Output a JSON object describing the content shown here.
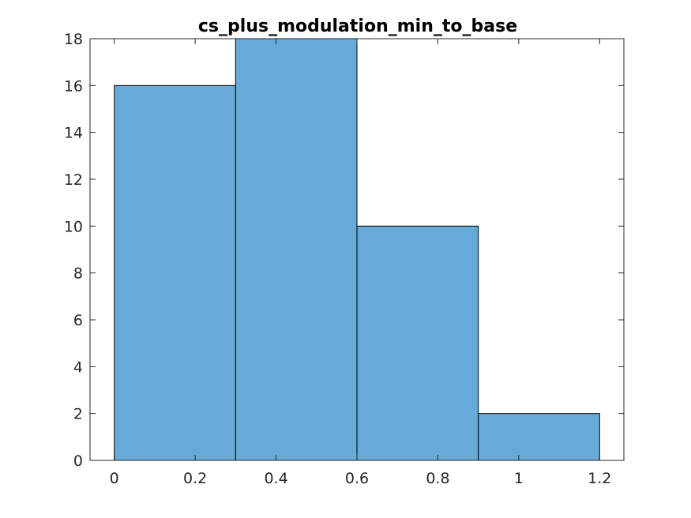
{
  "chart_data": {
    "type": "bar",
    "subtype": "histogram",
    "title": "cs_plus_modulation_min_to_base",
    "xlabel": "",
    "ylabel": "",
    "bin_edges": [
      0,
      0.3,
      0.6,
      0.9,
      1.2
    ],
    "counts": [
      16,
      18,
      10,
      2
    ],
    "xlim": [
      -0.06,
      1.26
    ],
    "ylim": [
      0,
      18
    ],
    "xticks": [
      0,
      0.2,
      0.4,
      0.6,
      0.8,
      1,
      1.2
    ],
    "xtick_labels": [
      "0",
      "0.2",
      "0.4",
      "0.6",
      "0.8",
      "1",
      "1.2"
    ],
    "yticks": [
      0,
      2,
      4,
      6,
      8,
      10,
      12,
      14,
      16,
      18
    ],
    "ytick_labels": [
      "0",
      "2",
      "4",
      "6",
      "8",
      "10",
      "12",
      "14",
      "16",
      "18"
    ],
    "grid": false,
    "legend": "none",
    "bar_color": "#66aad7",
    "edge_color": "#000000"
  }
}
